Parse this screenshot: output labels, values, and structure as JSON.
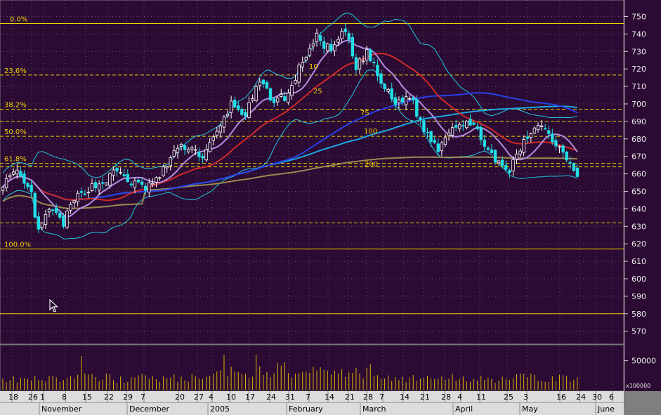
{
  "chart_data": {
    "type": "candlestick",
    "y_axis": {
      "ylim": [
        566,
        754
      ],
      "ticks": [
        570,
        580,
        590,
        600,
        610,
        620,
        630,
        640,
        650,
        660,
        670,
        680,
        690,
        700,
        710,
        720,
        730,
        740,
        750
      ]
    },
    "volume_axis": {
      "ylim": [
        0,
        75000
      ],
      "tick": 50000,
      "label": "50000",
      "scale_label": "x100000"
    },
    "x_tick_labels": [
      "18",
      "26",
      "1",
      "8",
      "15",
      "22",
      "29",
      "7",
      "20",
      "27",
      "4",
      "10",
      "17",
      "24",
      "31",
      "7",
      "14",
      "21",
      "28",
      "7",
      "14",
      "21",
      "28",
      "4",
      "11",
      "25",
      "3",
      "16",
      "24",
      "30",
      "6"
    ],
    "month_labels": [
      "November",
      "December",
      "2005",
      "February",
      "March",
      "April",
      "May",
      "June"
    ],
    "fibonacci": [
      {
        "label": "0.0%",
        "value": 746,
        "style": "solid"
      },
      {
        "label": "23.6%",
        "value": 716.5,
        "style": "dashed"
      },
      {
        "label": "38.2%",
        "value": 697,
        "style": "dashed"
      },
      {
        "label": "50.0%",
        "value": 681.5,
        "style": "dashed"
      },
      {
        "label": "61.8%",
        "value": 666,
        "style": "dashed"
      },
      {
        "label": "100.0%",
        "value": 617,
        "style": "solid"
      }
    ],
    "extra_levels": [
      {
        "value": 690,
        "style": "dashed"
      },
      {
        "value": 664,
        "style": "dashed"
      },
      {
        "value": 632,
        "style": "dashed"
      },
      {
        "value": 580,
        "style": "solid"
      }
    ],
    "ma_labels": [
      "10",
      "25",
      "75",
      "100",
      "200"
    ],
    "ma_colors": {
      "10": "#b08ee0",
      "25": "#d02828",
      "75": "#2840e8",
      "100": "#1ca8e0",
      "200": "#9a8a50",
      "band": "#22c8e0"
    },
    "candle_colors": {
      "up": "#ffffff",
      "down": "#22dde6"
    },
    "close_series": [
      {
        "i": 0,
        "v": 655
      },
      {
        "i": 4,
        "v": 660
      },
      {
        "i": 8,
        "v": 648
      },
      {
        "i": 10,
        "v": 626
      },
      {
        "i": 13,
        "v": 640
      },
      {
        "i": 17,
        "v": 632
      },
      {
        "i": 20,
        "v": 645
      },
      {
        "i": 24,
        "v": 652
      },
      {
        "i": 28,
        "v": 655
      },
      {
        "i": 32,
        "v": 662
      },
      {
        "i": 36,
        "v": 655
      },
      {
        "i": 40,
        "v": 652
      },
      {
        "i": 44,
        "v": 658
      },
      {
        "i": 48,
        "v": 673
      },
      {
        "i": 52,
        "v": 676
      },
      {
        "i": 56,
        "v": 670
      },
      {
        "i": 60,
        "v": 683
      },
      {
        "i": 64,
        "v": 700
      },
      {
        "i": 68,
        "v": 694
      },
      {
        "i": 72,
        "v": 712
      },
      {
        "i": 76,
        "v": 702
      },
      {
        "i": 80,
        "v": 705
      },
      {
        "i": 84,
        "v": 725
      },
      {
        "i": 88,
        "v": 738
      },
      {
        "i": 92,
        "v": 730
      },
      {
        "i": 96,
        "v": 742
      },
      {
        "i": 99,
        "v": 720
      },
      {
        "i": 102,
        "v": 730
      },
      {
        "i": 106,
        "v": 712
      },
      {
        "i": 110,
        "v": 700
      },
      {
        "i": 114,
        "v": 705
      },
      {
        "i": 118,
        "v": 685
      },
      {
        "i": 122,
        "v": 675
      },
      {
        "i": 126,
        "v": 688
      },
      {
        "i": 130,
        "v": 690
      },
      {
        "i": 134,
        "v": 682
      },
      {
        "i": 138,
        "v": 666
      },
      {
        "i": 142,
        "v": 662
      },
      {
        "i": 146,
        "v": 678
      },
      {
        "i": 150,
        "v": 690
      },
      {
        "i": 154,
        "v": 680
      },
      {
        "i": 158,
        "v": 670
      },
      {
        "i": 161,
        "v": 660
      }
    ]
  }
}
